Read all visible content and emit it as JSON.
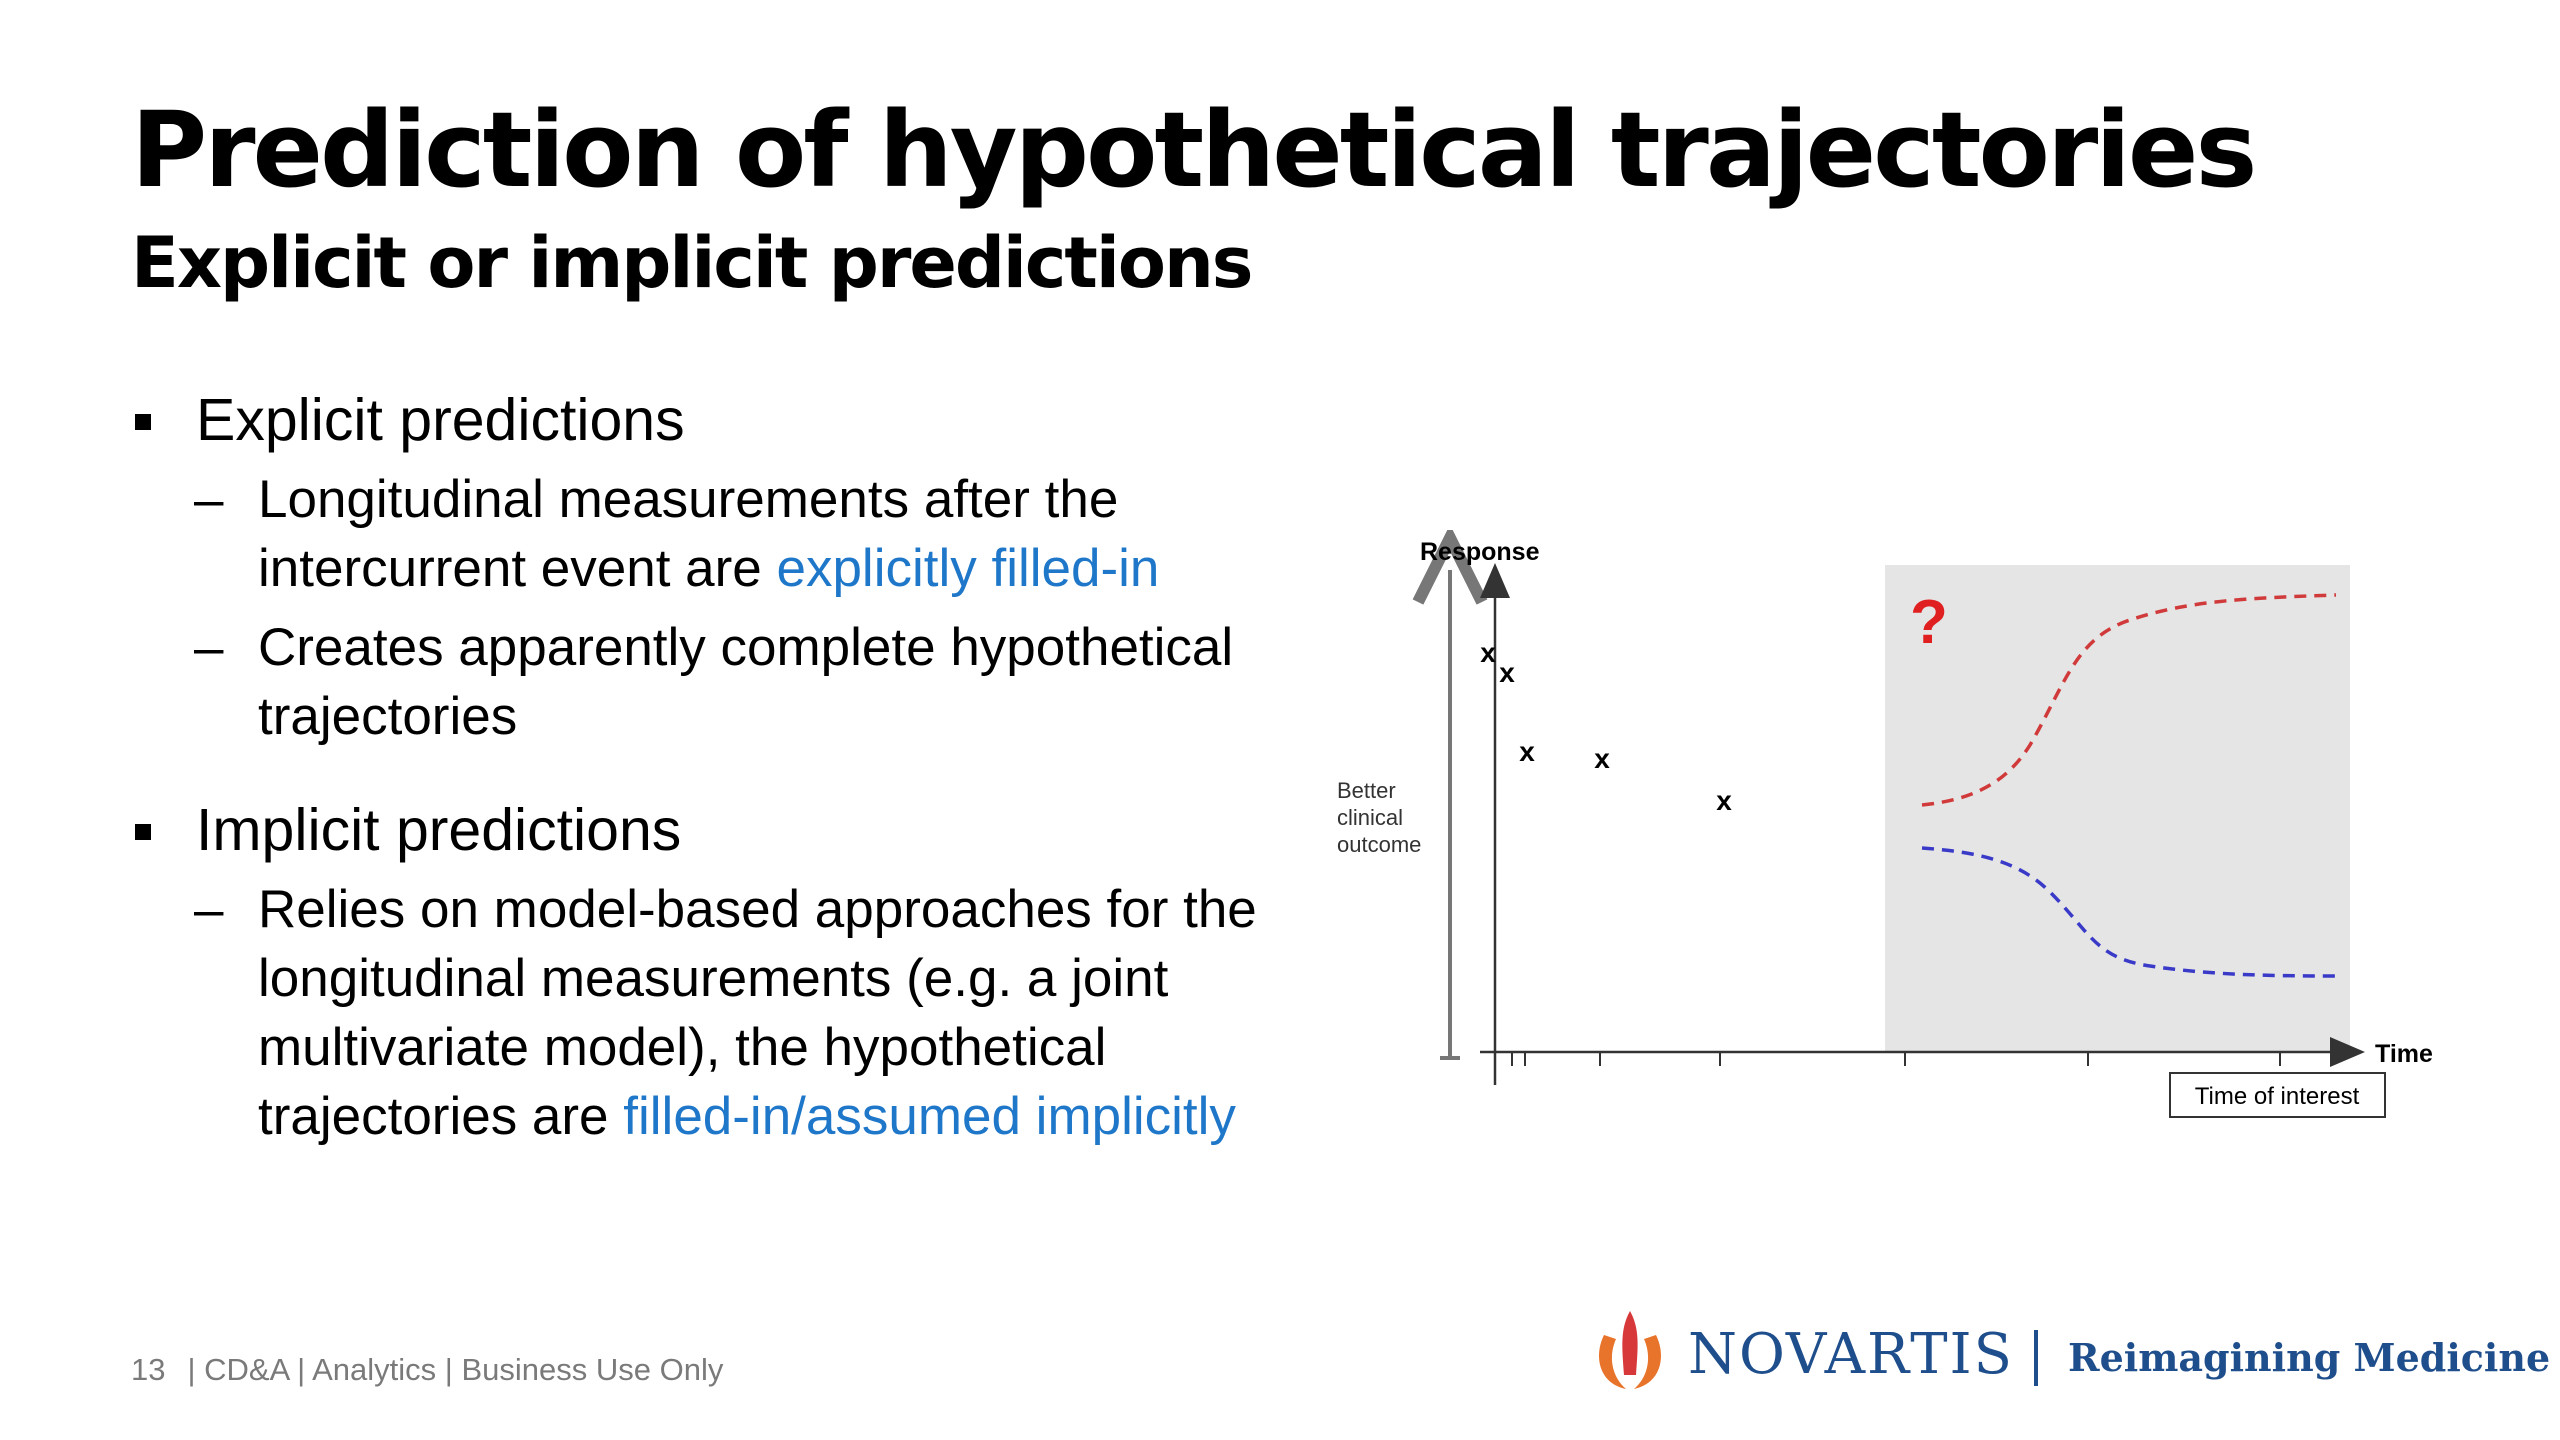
{
  "slide": {
    "title": "Prediction of hypothetical trajectories",
    "subtitle": "Explicit or implicit predictions"
  },
  "bullets": [
    {
      "label": "Explicit predictions",
      "subs": [
        {
          "text": "Longitudinal measurements after the intercurrent event are ",
          "highlight": "explicitly filled-in"
        },
        {
          "text": "Creates apparently complete hypothetical trajectories",
          "highlight": ""
        }
      ]
    },
    {
      "label": "Implicit predictions",
      "subs": [
        {
          "text": "Relies on model-based approaches for the longitudinal measurements (e.g. a joint multivariate model), the hypothetical trajectories are ",
          "highlight": "filled-in/assumed implicitly"
        }
      ]
    }
  ],
  "diagram": {
    "y_axis_label": "Response",
    "x_axis_label": "Time",
    "side_label": [
      "Better",
      "clinical",
      "outcome"
    ],
    "question_mark": "?",
    "time_of_interest_label": "Time of interest",
    "observation_marker": "x",
    "colors": {
      "question": "#e02020",
      "upper_curve": "#d13a3a",
      "lower_curve": "#3a3ac8",
      "shaded_region": "#e5e5e5"
    }
  },
  "footer": {
    "page_number": "13",
    "info": "| CD&A | Analytics | Business Use Only"
  },
  "brand": {
    "logo_icon": "novartis-flame-icon",
    "name": "NOVARTIS",
    "tagline": "Reimagining Medicine",
    "colors": {
      "primary": "#1f4e8c",
      "flame_orange": "#e8732a",
      "flame_red": "#d7383a"
    }
  }
}
